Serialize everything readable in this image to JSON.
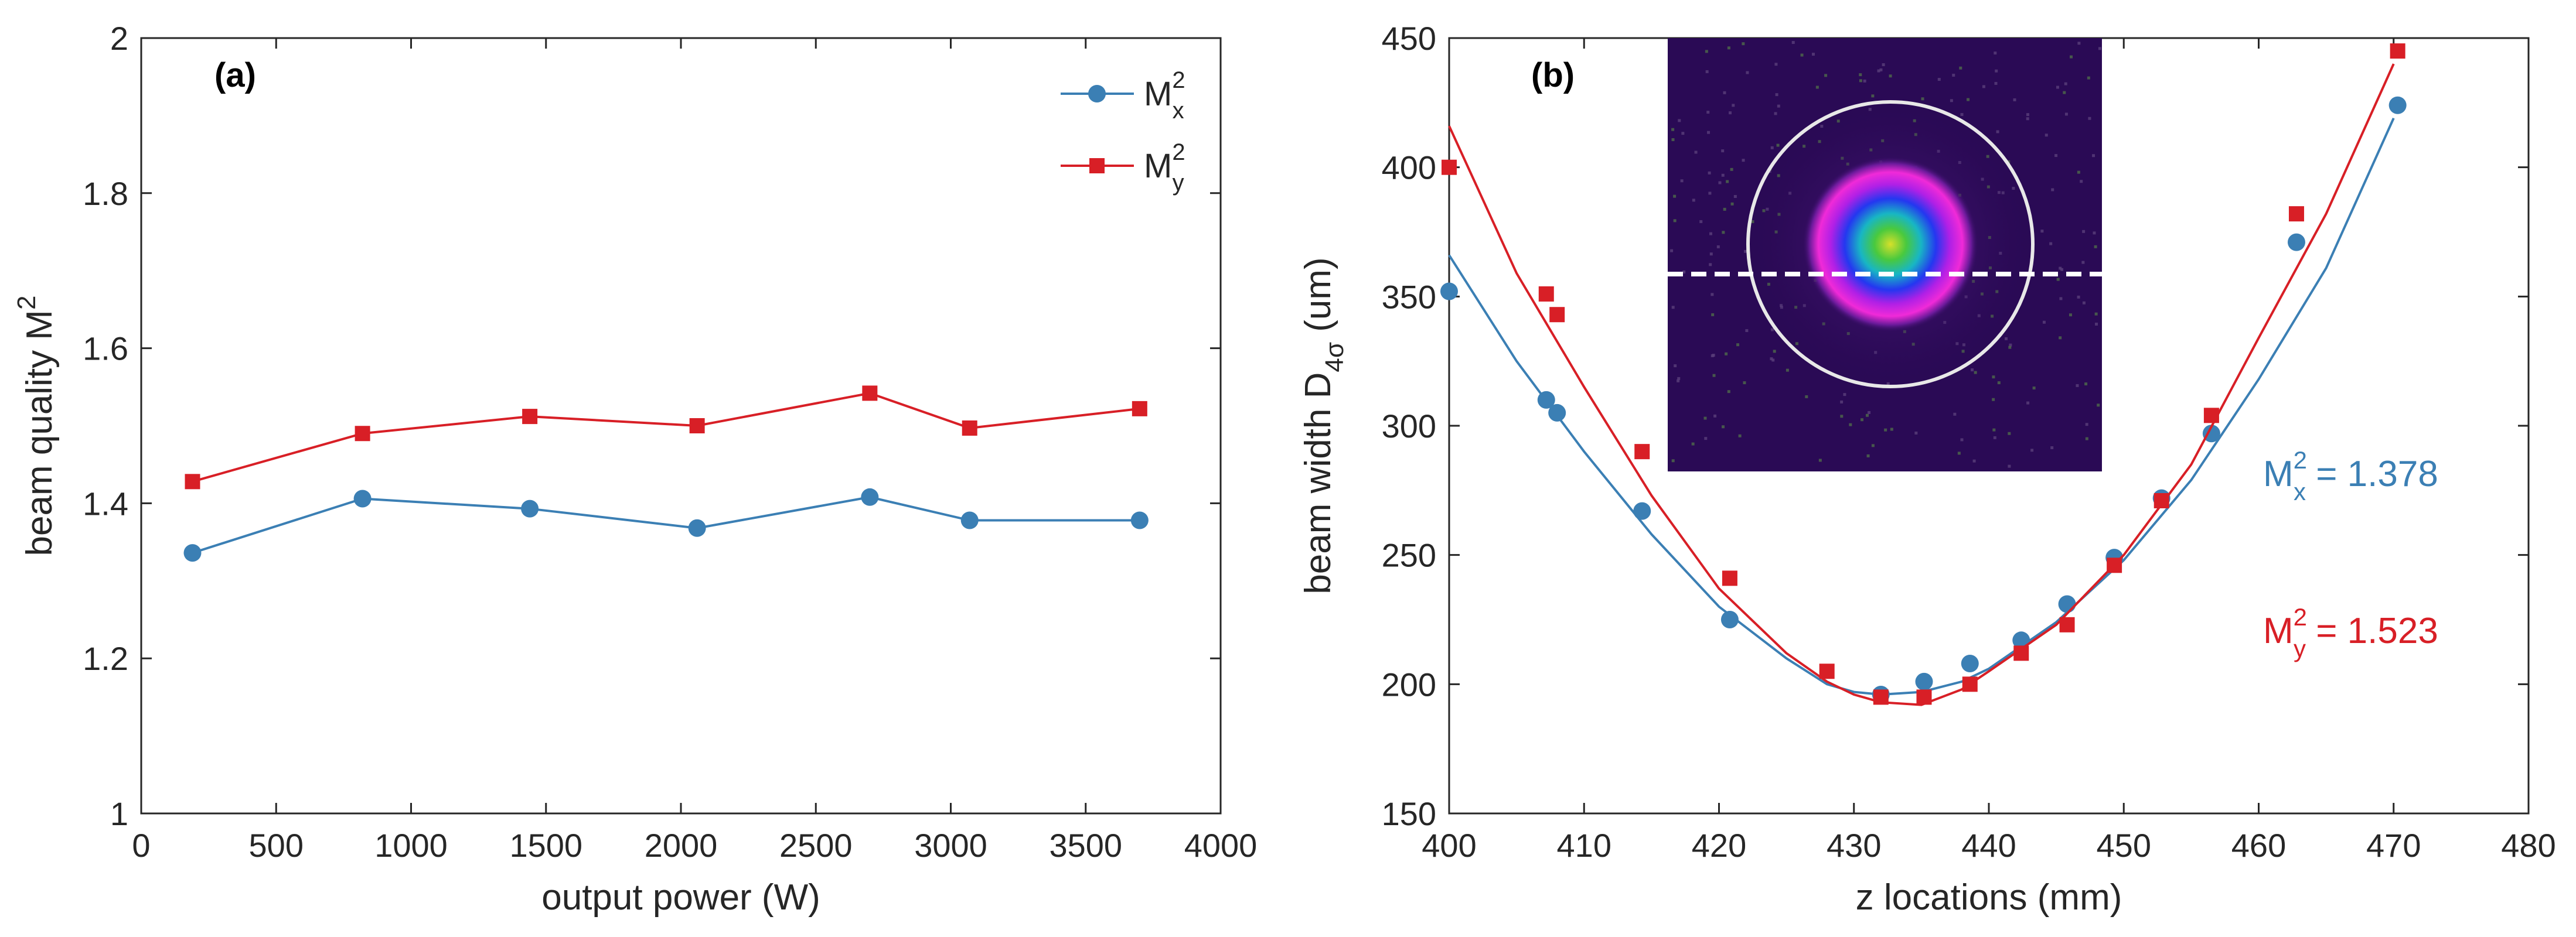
{
  "colors": {
    "series_x": "#3b7fb4",
    "series_y": "#d81f26"
  },
  "chart_data": [
    {
      "type": "line",
      "panel_label": "(a)",
      "xlabel": "output power (W)",
      "ylabel": "beam quality M",
      "ylabel_sup": "2",
      "xlim": [
        0,
        4000
      ],
      "ylim": [
        1,
        2
      ],
      "xticks": [
        0,
        500,
        1000,
        1500,
        2000,
        2500,
        3000,
        3500,
        4000
      ],
      "yticks": [
        1,
        1.2,
        1.4,
        1.6,
        1.8,
        2
      ],
      "ytick_labels": [
        "1",
        "1.2",
        "1.4",
        "1.6",
        "1.8",
        "2"
      ],
      "grid": false,
      "legend_position": "top-right",
      "legend": [
        {
          "text": "M",
          "sup": "2",
          "sub": "x"
        },
        {
          "text": "M",
          "sup": "2",
          "sub": "y"
        }
      ],
      "series": [
        {
          "marker": "circle",
          "color": "#3b7fb4",
          "x": [
            190,
            820,
            1440,
            2060,
            2700,
            3070,
            3700
          ],
          "y": [
            1.336,
            1.406,
            1.393,
            1.368,
            1.408,
            1.378,
            1.378
          ]
        },
        {
          "marker": "square",
          "color": "#d81f26",
          "x": [
            190,
            820,
            1440,
            2060,
            2700,
            3070,
            3700
          ],
          "y": [
            1.428,
            1.49,
            1.512,
            1.5,
            1.542,
            1.497,
            1.522
          ]
        }
      ]
    },
    {
      "type": "scatter",
      "panel_label": "(b)",
      "xlabel": "z locations (mm)",
      "ylabel": "beam width D",
      "ylabel_sub": "4σ",
      "ylabel_unit": " (um)",
      "xlim": [
        400,
        480
      ],
      "ylim": [
        150,
        450
      ],
      "xticks": [
        400,
        410,
        420,
        430,
        440,
        450,
        460,
        470,
        480
      ],
      "yticks": [
        150,
        200,
        250,
        300,
        350,
        400,
        450
      ],
      "grid": false,
      "inset": "beam profile image",
      "annotations": [
        {
          "text": "M",
          "sup": "2",
          "sub": "x",
          "value": " = 1.378",
          "color": "#3b7fb4"
        },
        {
          "text": "M",
          "sup": "2",
          "sub": "y",
          "value": " = 1.523",
          "color": "#d81f26"
        }
      ],
      "series": [
        {
          "marker": "circle",
          "color": "#3b7fb4",
          "x": [
            400,
            407.2,
            408,
            414.3,
            420.8,
            432,
            435.2,
            438.6,
            442.4,
            445.8,
            449.3,
            452.8,
            456.5,
            462.8,
            470.3
          ],
          "y": [
            352,
            310,
            305,
            267,
            225,
            196,
            201,
            208,
            217,
            231,
            249,
            272,
            297,
            371,
            424
          ],
          "fit_x": [
            400,
            405,
            410,
            415,
            420,
            425,
            428,
            430,
            432,
            435,
            438,
            440,
            445,
            450,
            455,
            460,
            465,
            470
          ],
          "fit_y": [
            366,
            325,
            290,
            258,
            230,
            210,
            200,
            197,
            196,
            197,
            201,
            206,
            224,
            248,
            279,
            318,
            361,
            419
          ]
        },
        {
          "marker": "square",
          "color": "#d81f26",
          "x": [
            400,
            407.2,
            408,
            414.3,
            420.8,
            428,
            432,
            435.2,
            438.6,
            442.4,
            445.8,
            449.3,
            452.8,
            456.5,
            462.8,
            470.3
          ],
          "y": [
            400,
            351,
            343,
            290,
            241,
            205,
            195,
            195,
            200,
            212,
            223,
            246,
            271,
            304,
            382,
            445
          ],
          "fit_x": [
            400,
            405,
            410,
            415,
            420,
            425,
            428,
            430,
            432,
            435,
            438,
            440,
            445,
            450,
            455,
            460,
            465,
            470
          ],
          "fit_y": [
            416,
            359,
            315,
            273,
            237,
            212,
            201,
            196,
            193,
            192,
            198,
            205,
            223,
            250,
            285,
            334,
            382,
            440
          ]
        }
      ]
    }
  ]
}
